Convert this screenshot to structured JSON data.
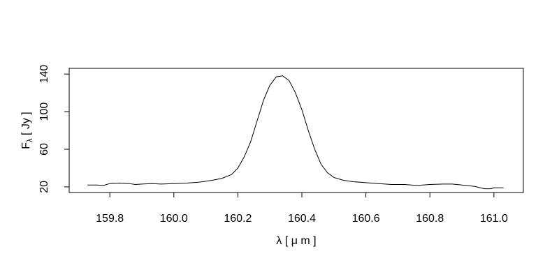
{
  "chart_data": {
    "type": "line",
    "x_label": "λ [ μ m ]",
    "y_label": {
      "main": "F",
      "subscript": "λ",
      "rest": " [ Jy ]"
    },
    "xlim": [
      159.673,
      161.092
    ],
    "ylim": [
      14,
      146
    ],
    "xticks": [
      159.8,
      {
        "value": 160,
        "label": "160.0"
      },
      160.2,
      160.4,
      160.6,
      160.8,
      {
        "value": 161,
        "label": "161.0"
      }
    ],
    "yticks": [
      20,
      60,
      100,
      140
    ],
    "color": "#000000",
    "x": [
      159.73,
      159.76,
      159.78,
      159.8,
      159.83,
      159.86,
      159.88,
      159.9,
      159.93,
      159.96,
      160.0,
      160.04,
      160.08,
      160.12,
      160.15,
      160.18,
      160.2,
      160.22,
      160.24,
      160.26,
      160.28,
      160.3,
      160.32,
      160.34,
      160.36,
      160.38,
      160.4,
      160.42,
      160.44,
      160.46,
      160.48,
      160.5,
      160.53,
      160.56,
      160.6,
      160.64,
      160.68,
      160.72,
      160.76,
      160.8,
      160.84,
      160.87,
      160.9,
      160.94,
      160.97,
      160.99,
      161.0,
      161.03
    ],
    "values": [
      22,
      22,
      21.5,
      23.5,
      24,
      23.5,
      22.5,
      23,
      23.5,
      23,
      23.5,
      24,
      25,
      27,
      29,
      33,
      40,
      52,
      68,
      90,
      112,
      128,
      137,
      138,
      133,
      120,
      102,
      80,
      60,
      44,
      35,
      30,
      27,
      25.5,
      24.5,
      23.5,
      22.5,
      22.5,
      21.5,
      22.5,
      23,
      23,
      22,
      20.5,
      18,
      18,
      19,
      19
    ]
  }
}
